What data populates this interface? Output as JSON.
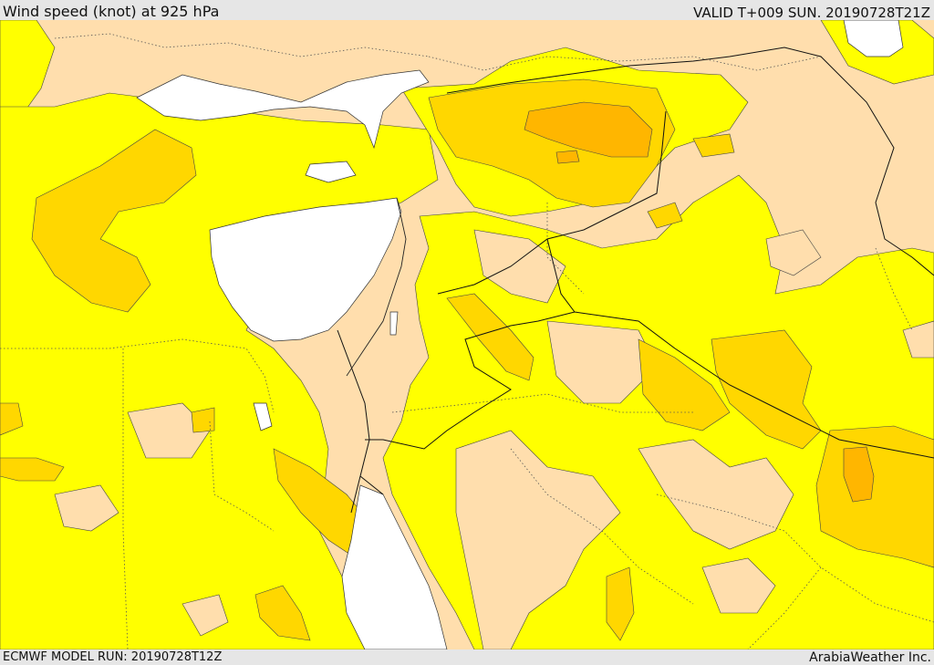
{
  "header": {
    "title": "Wind speed (knot) at 925 hPa",
    "valid": "VALID T+009 SUN. 20190728T21Z"
  },
  "footer": {
    "model_run": "ECMWF MODEL RUN: 20190728T12Z",
    "brand": "ArabiaWeather Inc."
  },
  "legend_colors": {
    "land_low": "#ffdead",
    "wind_band_1": "#ffff00",
    "wind_band_2": "#ffd700",
    "wind_band_3": "#ffb600",
    "sea": "#ffffff"
  }
}
